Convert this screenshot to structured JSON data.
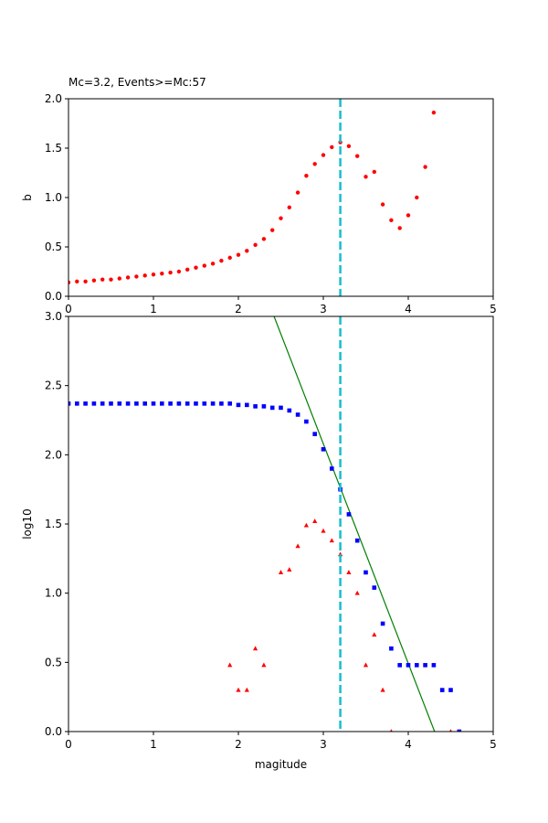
{
  "chart_data": [
    {
      "type": "scatter",
      "title": "Mc=3.2, Events>=Mc:57",
      "xlabel": "",
      "ylabel": "b",
      "xlim": [
        0,
        5
      ],
      "ylim": [
        0,
        2.0
      ],
      "xticks": [
        "0",
        "1",
        "2",
        "3",
        "4",
        "5"
      ],
      "yticks": [
        "0.0",
        "0.5",
        "1.0",
        "1.5",
        "2.0"
      ],
      "mc_line": {
        "x": 3.2,
        "color": "#17becf"
      },
      "series": [
        {
          "color": "#ff0000",
          "marker": "circle",
          "x": [
            0.0,
            0.1,
            0.2,
            0.3,
            0.4,
            0.5,
            0.6,
            0.7,
            0.8,
            0.9,
            1.0,
            1.1,
            1.2,
            1.3,
            1.4,
            1.5,
            1.6,
            1.7,
            1.8,
            1.9,
            2.0,
            2.1,
            2.2,
            2.3,
            2.4,
            2.5,
            2.6,
            2.7,
            2.8,
            2.9,
            3.0,
            3.1,
            3.2,
            3.3,
            3.4,
            3.5,
            3.6,
            3.7,
            3.8,
            3.9,
            4.0,
            4.1,
            4.2,
            4.3
          ],
          "y": [
            0.14,
            0.15,
            0.15,
            0.16,
            0.17,
            0.17,
            0.18,
            0.19,
            0.2,
            0.21,
            0.22,
            0.23,
            0.24,
            0.25,
            0.27,
            0.29,
            0.31,
            0.33,
            0.36,
            0.39,
            0.42,
            0.46,
            0.52,
            0.58,
            0.67,
            0.79,
            0.9,
            1.05,
            1.22,
            1.34,
            1.43,
            1.51,
            1.56,
            1.52,
            1.42,
            1.21,
            1.26,
            0.93,
            0.77,
            0.69,
            0.82,
            1.0,
            1.31,
            1.86
          ]
        }
      ]
    },
    {
      "type": "scatter",
      "title": "",
      "xlabel": "magitude",
      "ylabel": "log10",
      "xlim": [
        0,
        5
      ],
      "ylim": [
        0,
        3.0
      ],
      "xticks": [
        "0",
        "1",
        "2",
        "3",
        "4",
        "5"
      ],
      "yticks": [
        "0.0",
        "0.5",
        "1.0",
        "1.5",
        "2.0",
        "2.5",
        "3.0"
      ],
      "mc_line": {
        "x": 3.2,
        "color": "#17becf"
      },
      "fit_line": {
        "color": "#008000",
        "points": [
          [
            2.42,
            3.0
          ],
          [
            4.31,
            0.0
          ]
        ]
      },
      "series": [
        {
          "color": "#0000ff",
          "marker": "square",
          "x": [
            0.0,
            0.1,
            0.2,
            0.3,
            0.4,
            0.5,
            0.6,
            0.7,
            0.8,
            0.9,
            1.0,
            1.1,
            1.2,
            1.3,
            1.4,
            1.5,
            1.6,
            1.7,
            1.8,
            1.9,
            2.0,
            2.1,
            2.2,
            2.3,
            2.4,
            2.5,
            2.6,
            2.7,
            2.8,
            2.9,
            3.0,
            3.1,
            3.2,
            3.3,
            3.4,
            3.5,
            3.6,
            3.7,
            3.8,
            3.9,
            4.0,
            4.1,
            4.2,
            4.3,
            4.4,
            4.5,
            4.6
          ],
          "y": [
            2.37,
            2.37,
            2.37,
            2.37,
            2.37,
            2.37,
            2.37,
            2.37,
            2.37,
            2.37,
            2.37,
            2.37,
            2.37,
            2.37,
            2.37,
            2.37,
            2.37,
            2.37,
            2.37,
            2.37,
            2.36,
            2.36,
            2.35,
            2.35,
            2.34,
            2.34,
            2.32,
            2.29,
            2.24,
            2.15,
            2.04,
            1.9,
            1.75,
            1.57,
            1.38,
            1.15,
            1.04,
            0.78,
            0.6,
            0.48,
            0.48,
            0.48,
            0.48,
            0.48,
            0.3,
            0.3,
            0.0
          ]
        },
        {
          "color": "#ff0000",
          "marker": "triangle",
          "x": [
            1.9,
            2.0,
            2.1,
            2.2,
            2.3,
            2.5,
            2.6,
            2.7,
            2.8,
            2.9,
            3.0,
            3.1,
            3.2,
            3.3,
            3.4,
            3.5,
            3.6,
            3.7,
            3.8,
            4.5
          ],
          "y": [
            0.48,
            0.3,
            0.3,
            0.6,
            0.48,
            1.15,
            1.17,
            1.34,
            1.49,
            1.52,
            1.45,
            1.38,
            1.28,
            1.15,
            1.0,
            0.48,
            0.7,
            0.3,
            0.0,
            0.0
          ]
        }
      ]
    }
  ]
}
